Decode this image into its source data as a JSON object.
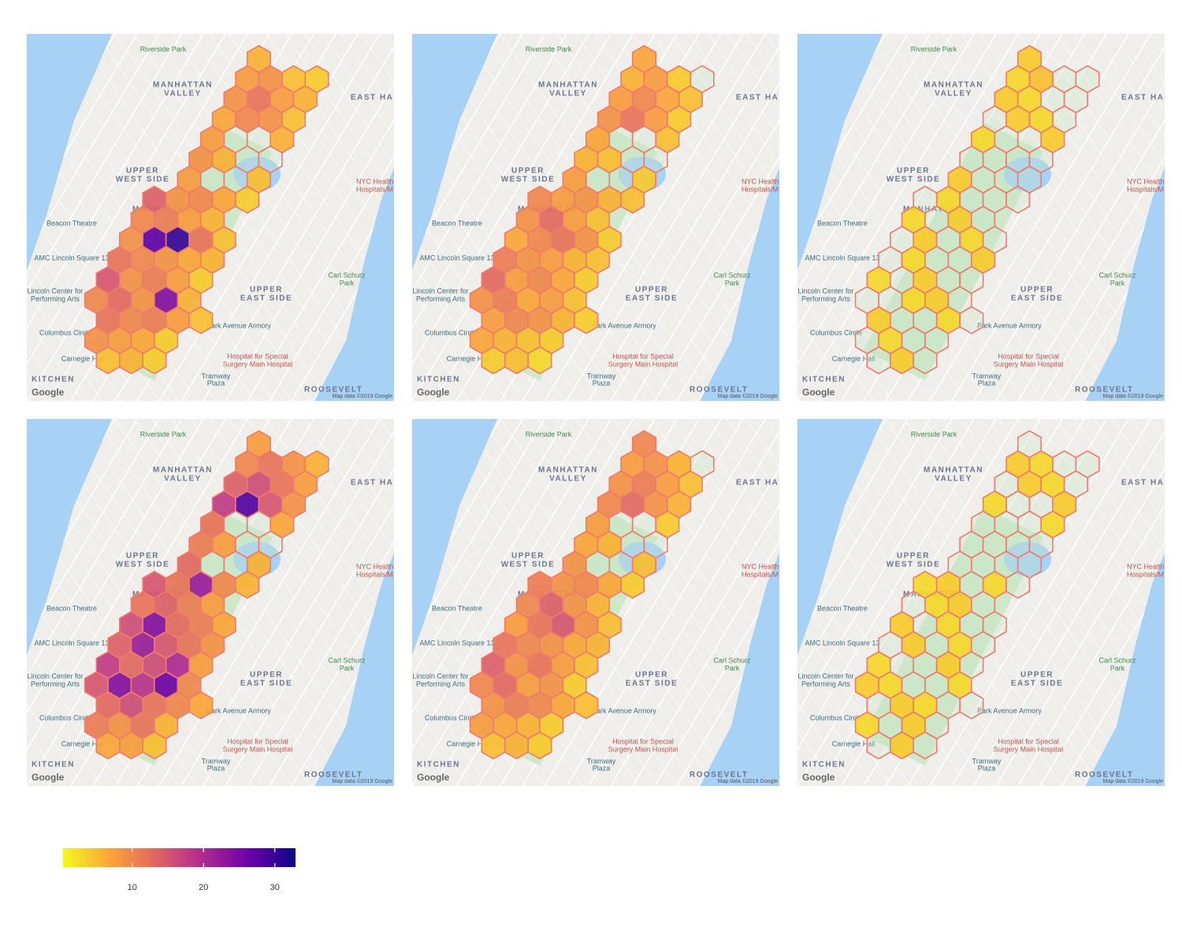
{
  "chart_data": {
    "type": "hexbin-map",
    "map_labels": [
      "Riverside Park",
      "MANHATTAN",
      "VALLEY",
      "EAST HARLEM",
      "UPPER",
      "WEST SIDE",
      "MANHATTAN",
      "Beacon Theatre",
      "AMC Lincoln Square 13",
      "Lincoln Center for",
      "Performing Arts",
      "Columbus Circle",
      "Carnegie Hall",
      "KITCHEN",
      "Park Avenue Armory",
      "Hospital for Special",
      "Surgery Main Hospital",
      "Tramway",
      "Plaza",
      "UPPER",
      "EAST SIDE",
      "Carl Schurz",
      "Park",
      "NYC Health +",
      "Hospitals/M",
      "ROOSEVELT",
      "Map data ©2019 Google",
      "Google"
    ],
    "panels": [
      {
        "values": [
          [
            6
          ],
          [
            8,
            9,
            5,
            4
          ],
          [
            9,
            12,
            8,
            6
          ],
          [
            7,
            10,
            9,
            5
          ],
          [
            8,
            null,
            null,
            6
          ],
          [
            9,
            6,
            null,
            null
          ],
          [
            8,
            null,
            null,
            5
          ],
          [
            14,
            9,
            10,
            7,
            4
          ],
          [
            10,
            11,
            8,
            6
          ],
          [
            9,
            27,
            30,
            12,
            5
          ],
          [
            12,
            10,
            9,
            7,
            6
          ],
          [
            15,
            9,
            11,
            8,
            4
          ],
          [
            10,
            13,
            9,
            24,
            6
          ],
          [
            12,
            10,
            11,
            8,
            5
          ],
          [
            9,
            8,
            7,
            4
          ],
          [
            5,
            6,
            4
          ]
        ]
      },
      {
        "values": [
          [
            7
          ],
          [
            6,
            8,
            4,
            null
          ],
          [
            8,
            10,
            7,
            5
          ],
          [
            9,
            12,
            8,
            4
          ],
          [
            7,
            null,
            null,
            5
          ],
          [
            6,
            5,
            null,
            null
          ],
          [
            8,
            null,
            null,
            4
          ],
          [
            10,
            8,
            9,
            6,
            5
          ],
          [
            9,
            13,
            8,
            5
          ],
          [
            7,
            10,
            12,
            9,
            4
          ],
          [
            11,
            9,
            8,
            6,
            5
          ],
          [
            13,
            8,
            10,
            7,
            4
          ],
          [
            9,
            11,
            7,
            8,
            5
          ],
          [
            8,
            10,
            9,
            6,
            4
          ],
          [
            7,
            6,
            5,
            4
          ],
          [
            4,
            5,
            3
          ]
        ]
      },
      {
        "values": [
          [
            4
          ],
          [
            3,
            5,
            null,
            null
          ],
          [
            4,
            3,
            null,
            null
          ],
          [
            null,
            4,
            3,
            null
          ],
          [
            3,
            null,
            null,
            4
          ],
          [
            null,
            null,
            null,
            null
          ],
          [
            4,
            null,
            null,
            null
          ],
          [
            null,
            3,
            null,
            null,
            null
          ],
          [
            3,
            null,
            4,
            null
          ],
          [
            null,
            4,
            null,
            3,
            null
          ],
          [
            null,
            3,
            null,
            null,
            4
          ],
          [
            3,
            null,
            4,
            null,
            null
          ],
          [
            null,
            null,
            3,
            4,
            null
          ],
          [
            4,
            null,
            null,
            3,
            null
          ],
          [
            null,
            3,
            null,
            null
          ],
          [
            null,
            4,
            null
          ]
        ]
      },
      {
        "values": [
          [
            8
          ],
          [
            10,
            12,
            9,
            6
          ],
          [
            14,
            16,
            12,
            8
          ],
          [
            18,
            28,
            15,
            9
          ],
          [
            12,
            null,
            null,
            7
          ],
          [
            11,
            8,
            null,
            null
          ],
          [
            13,
            null,
            null,
            6
          ],
          [
            15,
            12,
            22,
            10,
            6
          ],
          [
            12,
            14,
            11,
            8
          ],
          [
            16,
            24,
            13,
            11,
            7
          ],
          [
            14,
            22,
            15,
            12,
            9
          ],
          [
            18,
            13,
            16,
            20,
            8
          ],
          [
            15,
            24,
            19,
            26,
            10
          ],
          [
            13,
            16,
            12,
            10,
            7
          ],
          [
            11,
            9,
            12,
            6
          ],
          [
            7,
            8,
            5
          ]
        ]
      },
      {
        "values": [
          [
            10
          ],
          [
            8,
            9,
            6,
            null
          ],
          [
            9,
            11,
            8,
            5
          ],
          [
            10,
            13,
            9,
            6
          ],
          [
            8,
            null,
            null,
            4
          ],
          [
            7,
            6,
            null,
            null
          ],
          [
            9,
            null,
            null,
            5
          ],
          [
            11,
            9,
            10,
            7,
            4
          ],
          [
            10,
            14,
            9,
            6
          ],
          [
            8,
            12,
            15,
            9,
            5
          ],
          [
            12,
            10,
            9,
            7,
            6
          ],
          [
            14,
            9,
            12,
            8,
            5
          ],
          [
            10,
            13,
            8,
            9,
            4
          ],
          [
            9,
            11,
            10,
            7,
            5
          ],
          [
            8,
            7,
            6,
            4
          ],
          [
            5,
            6,
            4
          ]
        ]
      },
      {
        "values": [
          [
            null
          ],
          [
            4,
            3,
            null,
            null
          ],
          [
            null,
            4,
            3,
            null
          ],
          [
            3,
            null,
            null,
            4
          ],
          [
            null,
            null,
            null,
            3
          ],
          [
            null,
            null,
            null,
            null
          ],
          [
            null,
            null,
            null,
            null
          ],
          [
            3,
            4,
            null,
            3,
            null
          ],
          [
            null,
            3,
            4,
            null
          ],
          [
            4,
            null,
            3,
            null,
            null
          ],
          [
            null,
            4,
            null,
            3,
            null
          ],
          [
            3,
            null,
            null,
            4,
            null
          ],
          [
            4,
            3,
            null,
            null,
            3
          ],
          [
            null,
            4,
            3,
            null,
            null
          ],
          [
            3,
            null,
            4,
            null
          ],
          [
            null,
            4,
            null
          ]
        ]
      }
    ],
    "colorscale": [
      "#f0f921",
      "#fca636",
      "#e16462",
      "#b12a90",
      "#6a00a8",
      "#0d0887"
    ],
    "clim": [
      0.3,
      32.9
    ],
    "cticks": [
      10,
      20,
      30
    ]
  }
}
